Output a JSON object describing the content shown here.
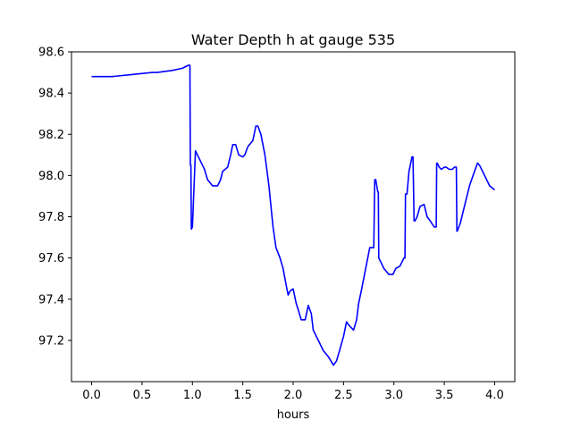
{
  "chart_data": {
    "type": "line",
    "title": "Water Depth h at gauge 535",
    "xlabel": "hours",
    "ylabel": "",
    "xlim": [
      -0.2,
      4.2
    ],
    "ylim": [
      97.0,
      98.6
    ],
    "xticks": [
      0.0,
      0.5,
      1.0,
      1.5,
      2.0,
      2.5,
      3.0,
      3.5,
      4.0
    ],
    "xtick_labels": [
      "0.0",
      "0.5",
      "1.0",
      "1.5",
      "2.0",
      "2.5",
      "3.0",
      "3.5",
      "4.0"
    ],
    "yticks": [
      97.2,
      97.4,
      97.6,
      97.8,
      98.0,
      98.2,
      98.4,
      98.6
    ],
    "ytick_labels": [
      "97.2",
      "97.4",
      "97.6",
      "97.8",
      "98.0",
      "98.2",
      "98.4",
      "98.6"
    ],
    "grid": false,
    "series": [
      {
        "name": "",
        "color": "#0000ff",
        "x": [
          0.0,
          0.2,
          0.4,
          0.6,
          0.65,
          0.8,
          0.9,
          0.96,
          0.975,
          0.98,
          0.985,
          0.99,
          1.0,
          1.03,
          1.05,
          1.08,
          1.1,
          1.12,
          1.15,
          1.2,
          1.25,
          1.28,
          1.3,
          1.35,
          1.38,
          1.4,
          1.43,
          1.46,
          1.5,
          1.52,
          1.55,
          1.6,
          1.63,
          1.65,
          1.68,
          1.72,
          1.76,
          1.8,
          1.83,
          1.87,
          1.9,
          1.93,
          1.95,
          1.97,
          2.0,
          2.03,
          2.05,
          2.08,
          2.12,
          2.15,
          2.18,
          2.2,
          2.25,
          2.3,
          2.35,
          2.4,
          2.43,
          2.46,
          2.5,
          2.53,
          2.56,
          2.6,
          2.63,
          2.65,
          2.68,
          2.72,
          2.76,
          2.8,
          2.81,
          2.82,
          2.84,
          2.845,
          2.85,
          2.9,
          2.95,
          2.99,
          3.02,
          3.06,
          3.1,
          3.11,
          3.115,
          3.13,
          3.15,
          3.18,
          3.19,
          3.2,
          3.21,
          3.23,
          3.26,
          3.3,
          3.33,
          3.36,
          3.4,
          3.42,
          3.425,
          3.43,
          3.45,
          3.47,
          3.5,
          3.52,
          3.55,
          3.58,
          3.6,
          3.62,
          3.625,
          3.63,
          3.66,
          3.7,
          3.75,
          3.8,
          3.83,
          3.85,
          3.9,
          3.95,
          4.0
        ],
        "y": [
          98.48,
          98.48,
          98.49,
          98.5,
          98.5,
          98.51,
          98.52,
          98.535,
          98.535,
          98.05,
          98.05,
          97.74,
          97.75,
          98.12,
          98.1,
          98.07,
          98.05,
          98.03,
          97.98,
          97.95,
          97.95,
          97.98,
          98.02,
          98.04,
          98.1,
          98.15,
          98.15,
          98.1,
          98.09,
          98.1,
          98.14,
          98.17,
          98.24,
          98.24,
          98.2,
          98.1,
          97.95,
          97.75,
          97.65,
          97.6,
          97.55,
          97.47,
          97.42,
          97.44,
          97.45,
          97.38,
          97.35,
          97.3,
          97.3,
          97.37,
          97.33,
          97.25,
          97.2,
          97.15,
          97.12,
          97.08,
          97.1,
          97.15,
          97.22,
          97.29,
          97.27,
          97.25,
          97.3,
          97.38,
          97.45,
          97.55,
          97.65,
          97.65,
          97.98,
          97.98,
          97.92,
          97.92,
          97.6,
          97.55,
          97.52,
          97.52,
          97.55,
          97.56,
          97.6,
          97.6,
          97.91,
          97.91,
          98.02,
          98.09,
          98.09,
          97.78,
          97.78,
          97.8,
          97.85,
          97.86,
          97.8,
          97.78,
          97.75,
          97.75,
          98.06,
          98.06,
          98.04,
          98.03,
          98.04,
          98.04,
          98.03,
          98.03,
          98.04,
          98.04,
          97.73,
          97.73,
          97.77,
          97.85,
          97.95,
          98.02,
          98.06,
          98.05,
          98.0,
          97.95,
          97.93
        ]
      }
    ]
  }
}
